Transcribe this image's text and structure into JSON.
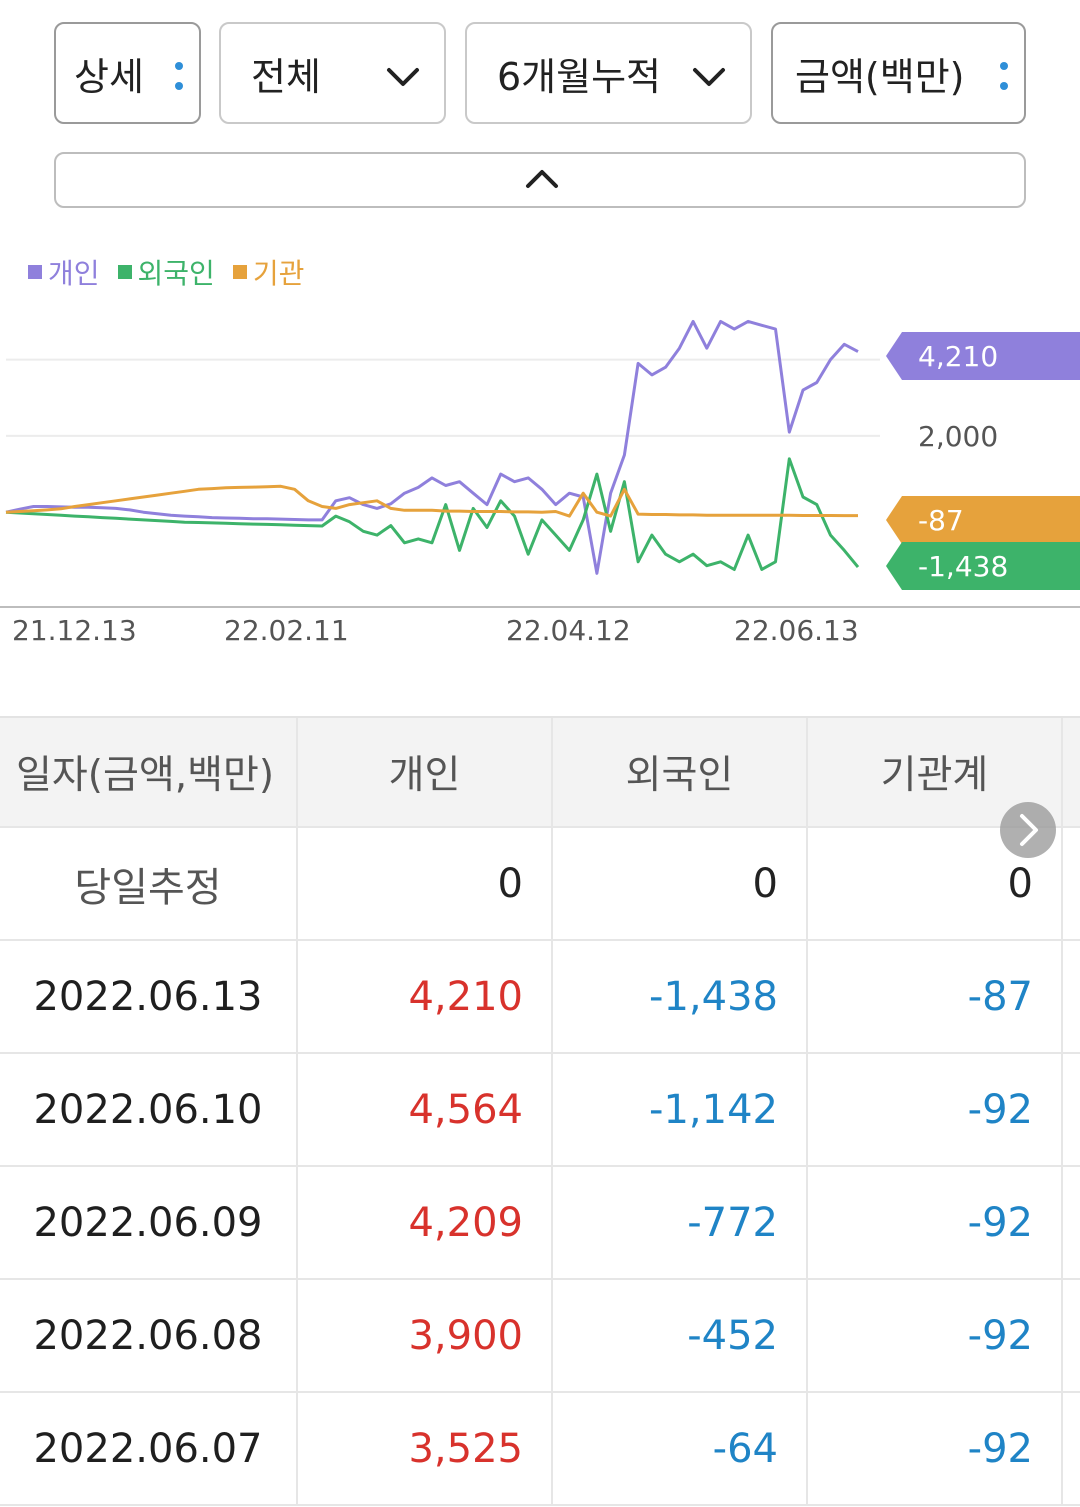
{
  "filters": {
    "detail": "상세",
    "scope": "전체",
    "period": "6개월누적",
    "unit": "금액(백만)"
  },
  "legend": [
    {
      "label": "개인",
      "color": "#8f80dc"
    },
    {
      "label": "외국인",
      "color": "#3db36a"
    },
    {
      "label": "기관",
      "color": "#e6a23c"
    }
  ],
  "chart_data": {
    "type": "line",
    "x_tick_labels": [
      "21.12.13",
      "22.02.11",
      "22.04.12",
      "22.06.13"
    ],
    "y_tick_labels": [
      "2,000"
    ],
    "y_grid": [
      2000,
      4000
    ],
    "ylim": [
      -2300,
      5300
    ],
    "last_value_tags": [
      {
        "series": "개인",
        "value": "4,210",
        "color": "#8f80dc"
      },
      {
        "series": "기관",
        "value": "-87",
        "color": "#e6a23c"
      },
      {
        "series": "외국인",
        "value": "-1,438",
        "color": "#3db36a"
      }
    ],
    "series": [
      {
        "name": "개인",
        "color": "#8f80dc",
        "values": [
          0,
          80,
          150,
          150,
          140,
          130,
          130,
          120,
          100,
          60,
          0,
          -40,
          -80,
          -100,
          -120,
          -140,
          -150,
          -160,
          -170,
          -170,
          -180,
          -190,
          -200,
          -200,
          300,
          380,
          200,
          100,
          220,
          500,
          650,
          900,
          700,
          800,
          500,
          200,
          1000,
          800,
          900,
          600,
          200,
          500,
          400,
          -1600,
          500,
          1500,
          3900,
          3600,
          3800,
          4300,
          5000,
          4300,
          5000,
          4800,
          5000,
          4900,
          4800,
          2100,
          3200,
          3400,
          4000,
          4400,
          4210
        ]
      },
      {
        "name": "외국인",
        "color": "#3db36a",
        "values": [
          0,
          -20,
          -40,
          -60,
          -80,
          -100,
          -120,
          -140,
          -160,
          -180,
          -200,
          -220,
          -240,
          -260,
          -270,
          -280,
          -290,
          -300,
          -310,
          -320,
          -330,
          -340,
          -350,
          -360,
          -100,
          -250,
          -500,
          -600,
          -350,
          -800,
          -700,
          -800,
          200,
          -1000,
          100,
          -400,
          300,
          -100,
          -1100,
          -200,
          -600,
          -1000,
          -200,
          1000,
          -500,
          800,
          -1300,
          -600,
          -1100,
          -1300,
          -1100,
          -1400,
          -1300,
          -1500,
          -600,
          -1500,
          -1300,
          1400,
          400,
          200,
          -600,
          -1000,
          -1438
        ]
      },
      {
        "name": "기관",
        "color": "#e6a23c",
        "values": [
          0,
          20,
          40,
          60,
          90,
          150,
          200,
          250,
          300,
          350,
          400,
          450,
          500,
          550,
          600,
          620,
          640,
          650,
          660,
          670,
          680,
          600,
          300,
          150,
          100,
          200,
          250,
          300,
          100,
          50,
          50,
          50,
          30,
          30,
          20,
          20,
          20,
          10,
          10,
          0,
          20,
          -100,
          500,
          0,
          -100,
          600,
          -50,
          -60,
          -60,
          -70,
          -70,
          -80,
          -80,
          -80,
          -80,
          -80,
          -80,
          -80,
          -85,
          -85,
          -86,
          -87,
          -87
        ]
      }
    ]
  },
  "table": {
    "headers": [
      "일자(금액,백만)",
      "개인",
      "외국인",
      "기관계"
    ],
    "rows": [
      {
        "date": "당일추정",
        "indiv": "0",
        "foreign": "0",
        "inst": "0"
      },
      {
        "date": "2022.06.13",
        "indiv": "4,210",
        "foreign": "-1,438",
        "inst": "-87"
      },
      {
        "date": "2022.06.10",
        "indiv": "4,564",
        "foreign": "-1,142",
        "inst": "-92"
      },
      {
        "date": "2022.06.09",
        "indiv": "4,209",
        "foreign": "-772",
        "inst": "-92"
      },
      {
        "date": "2022.06.08",
        "indiv": "3,900",
        "foreign": "-452",
        "inst": "-92"
      },
      {
        "date": "2022.06.07",
        "indiv": "3,525",
        "foreign": "-64",
        "inst": "-92"
      }
    ]
  },
  "colors": {
    "positive": "#d8322c",
    "negative": "#1f84c6"
  }
}
